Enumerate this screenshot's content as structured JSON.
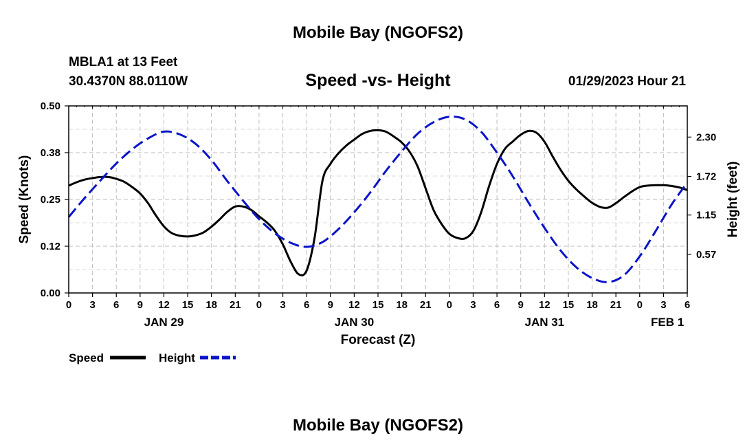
{
  "header": {
    "title": "Mobile Bay (NGOFS2)",
    "station": "MBLA1 at 13 Feet",
    "coords": "30.4370N  88.0110W",
    "datetime": "01/29/2023 Hour 21",
    "footer_title": "Mobile Bay (NGOFS2)"
  },
  "colors": {
    "speed": "#000000",
    "height": "#0a14c8",
    "grid": "#bdbdbd"
  },
  "chart_data": {
    "type": "line",
    "title": "Speed -vs- Height",
    "xlabel": "Forecast (Z)",
    "ylabel_left": "Speed (Knots)",
    "ylabel_right": "Height (feet)",
    "x_range_hours": [
      0,
      78
    ],
    "x_ticks": [
      0,
      3,
      6,
      9,
      12,
      15,
      18,
      21,
      24,
      27,
      30,
      33,
      36,
      39,
      42,
      45,
      48,
      51,
      54,
      57,
      60,
      63,
      66,
      69,
      72,
      75,
      78
    ],
    "x_tick_labels": [
      "0",
      "3",
      "6",
      "9",
      "12",
      "15",
      "18",
      "21",
      "0",
      "3",
      "6",
      "9",
      "12",
      "15",
      "18",
      "21",
      "0",
      "3",
      "6",
      "9",
      "12",
      "15",
      "18",
      "21",
      "0",
      "3",
      "6"
    ],
    "day_labels": [
      {
        "label": "JAN 29",
        "hour": 12
      },
      {
        "label": "JAN 30",
        "hour": 36
      },
      {
        "label": "JAN 31",
        "hour": 60
      },
      {
        "label": "FEB 1",
        "hour": 75.5
      }
    ],
    "y_left": {
      "range": [
        0,
        0.5
      ],
      "ticks": [
        0.0,
        0.125,
        0.25,
        0.375,
        0.5
      ],
      "tick_labels": [
        "0.00",
        "0.12",
        "0.25",
        "0.38",
        "0.50"
      ]
    },
    "y_right": {
      "range": [
        0,
        2.76
      ],
      "ticks": [
        0.57,
        1.15,
        1.72,
        2.3
      ],
      "tick_labels": [
        "0.57",
        "1.15",
        "1.72",
        "2.30"
      ]
    },
    "series": [
      {
        "name": "Speed",
        "axis": "left",
        "style": "solid",
        "x": [
          0,
          1,
          2,
          3,
          4,
          5,
          6,
          7,
          8,
          9,
          10,
          11,
          12,
          13,
          14,
          15,
          16,
          17,
          18,
          19,
          20,
          21,
          22,
          23,
          24,
          25,
          26,
          27,
          28,
          29,
          30,
          31,
          32,
          33,
          34,
          35,
          36,
          37,
          38,
          39,
          40,
          41,
          42,
          43,
          44,
          45,
          46,
          47,
          48,
          49,
          50,
          51,
          52,
          53,
          54,
          55,
          56,
          57,
          58,
          59,
          60,
          61,
          62,
          63,
          64,
          65,
          66,
          67,
          68,
          69,
          70,
          71,
          72,
          73,
          74,
          75,
          76,
          77,
          78
        ],
        "values": [
          0.287,
          0.296,
          0.303,
          0.307,
          0.31,
          0.31,
          0.305,
          0.297,
          0.283,
          0.266,
          0.24,
          0.207,
          0.178,
          0.16,
          0.153,
          0.151,
          0.154,
          0.162,
          0.177,
          0.196,
          0.217,
          0.231,
          0.231,
          0.222,
          0.205,
          0.188,
          0.166,
          0.13,
          0.083,
          0.05,
          0.06,
          0.147,
          0.3,
          0.345,
          0.373,
          0.394,
          0.41,
          0.425,
          0.433,
          0.435,
          0.431,
          0.418,
          0.402,
          0.377,
          0.338,
          0.28,
          0.222,
          0.185,
          0.158,
          0.147,
          0.146,
          0.165,
          0.215,
          0.285,
          0.345,
          0.385,
          0.405,
          0.423,
          0.433,
          0.428,
          0.404,
          0.366,
          0.33,
          0.3,
          0.277,
          0.258,
          0.241,
          0.23,
          0.228,
          0.24,
          0.256,
          0.271,
          0.283,
          0.287,
          0.288,
          0.288,
          0.286,
          0.282,
          0.275
        ]
      },
      {
        "name": "Height",
        "axis": "right",
        "style": "dashed",
        "x": [
          0,
          2,
          4,
          6,
          8,
          10,
          12,
          14,
          16,
          18,
          20,
          22,
          24,
          26,
          28,
          30,
          32,
          34,
          36,
          38,
          40,
          42,
          44,
          46,
          48,
          50,
          52,
          54,
          56,
          58,
          60,
          62,
          64,
          66,
          68,
          70,
          72,
          74,
          76,
          78
        ],
        "values": [
          1.12,
          1.4,
          1.66,
          1.91,
          2.12,
          2.28,
          2.38,
          2.34,
          2.2,
          1.96,
          1.65,
          1.36,
          1.09,
          0.88,
          0.74,
          0.68,
          0.75,
          0.94,
          1.19,
          1.48,
          1.8,
          2.09,
          2.35,
          2.52,
          2.6,
          2.56,
          2.38,
          2.07,
          1.72,
          1.33,
          0.96,
          0.63,
          0.38,
          0.22,
          0.16,
          0.26,
          0.54,
          0.91,
          1.3,
          1.63
        ]
      }
    ],
    "legend": [
      {
        "label": "Speed",
        "style": "solid"
      },
      {
        "label": "Height",
        "style": "dashed"
      }
    ],
    "grid": true
  }
}
